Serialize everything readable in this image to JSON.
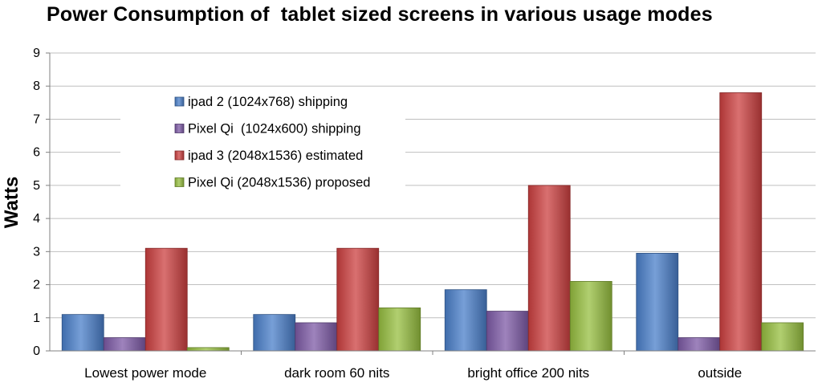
{
  "chart_data": {
    "type": "bar",
    "title": "Power Consumption of  tablet sized screens in various usage modes",
    "xlabel": "",
    "ylabel": "Watts",
    "ylim": [
      0,
      9
    ],
    "yticks": [
      0,
      1,
      2,
      3,
      4,
      5,
      6,
      7,
      8,
      9
    ],
    "grid": true,
    "legend_position": "top-left",
    "categories": [
      "Lowest power mode",
      "dark room 60 nits",
      "bright office 200 nits",
      "outside"
    ],
    "series": [
      {
        "name": "ipad 2 (1024x768) shipping",
        "color": "#4a7fc9",
        "values": [
          1.1,
          1.1,
          1.85,
          2.95
        ]
      },
      {
        "name": "Pixel Qi  (1024x600) shipping",
        "color": "#7d5aa6",
        "values": [
          0.4,
          0.85,
          1.2,
          0.4
        ]
      },
      {
        "name": "ipad 3 (2048x1536) estimated",
        "color": "#cc4040",
        "values": [
          3.1,
          3.1,
          5.0,
          7.8
        ]
      },
      {
        "name": "Pixel Qi (2048x1536) proposed",
        "color": "#97bf40",
        "values": [
          0.1,
          1.3,
          2.1,
          0.85
        ]
      }
    ]
  }
}
